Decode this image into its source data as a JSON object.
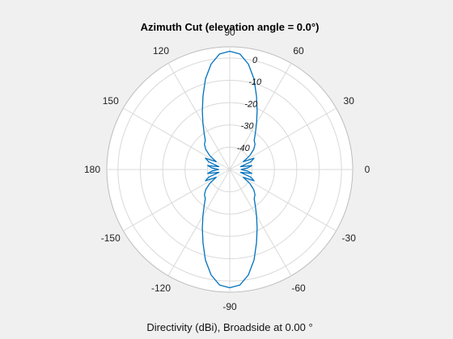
{
  "chart_data": {
    "type": "polar-line",
    "title": "Azimuth Cut (elevation angle = 0.0°)",
    "caption": "Directivity (dBi), Broadside at 0.00 °",
    "angle_ticks_deg": [
      0,
      30,
      60,
      90,
      120,
      150,
      180,
      -150,
      -120,
      -90,
      -60,
      -30
    ],
    "angle_tick_labels": [
      "0",
      "30",
      "60",
      "90",
      "120",
      "150",
      "180",
      "-150",
      "-120",
      "-90",
      "-60",
      "-30"
    ],
    "r_ticks_db": [
      0,
      -10,
      -20,
      -30,
      -40
    ],
    "r_tick_labels": [
      "0",
      "-10",
      "-20",
      "-30",
      "-40"
    ],
    "r_lim_db": [
      -50,
      5
    ],
    "grid": true,
    "series": [
      {
        "name": "Directivity",
        "color": "#0072bd",
        "angle_deg": [
          0,
          5,
          10,
          15,
          20,
          25,
          30,
          35,
          40,
          45,
          50,
          55,
          60,
          65,
          70,
          75,
          80,
          85,
          90,
          95,
          100,
          105,
          110,
          115,
          120,
          125,
          130,
          135,
          140,
          145,
          150,
          155,
          160,
          165,
          170,
          175,
          180,
          185,
          190,
          195,
          200,
          205,
          210,
          215,
          220,
          225,
          230,
          235,
          240,
          245,
          250,
          255,
          260,
          265,
          270,
          275,
          280,
          285,
          290,
          295,
          300,
          305,
          310,
          315,
          320,
          325,
          330,
          335,
          340,
          345,
          350,
          355
        ],
        "directivity_dbi": [
          -45,
          -42,
          -40,
          -45,
          -40,
          -38,
          -43,
          -39,
          -36,
          -34,
          -33,
          -30,
          -26,
          -21,
          -15,
          -8,
          -2,
          2,
          3,
          2,
          -2,
          -8,
          -15,
          -21,
          -26,
          -30,
          -33,
          -34,
          -36,
          -39,
          -43,
          -38,
          -40,
          -45,
          -40,
          -42,
          -45,
          -42,
          -40,
          -45,
          -40,
          -38,
          -43,
          -39,
          -36,
          -34,
          -33,
          -30,
          -26,
          -21,
          -15,
          -8,
          -2,
          2,
          3,
          2,
          -2,
          -8,
          -15,
          -21,
          -26,
          -30,
          -33,
          -34,
          -36,
          -39,
          -43,
          -38,
          -40,
          -45,
          -40,
          -42
        ]
      }
    ]
  }
}
